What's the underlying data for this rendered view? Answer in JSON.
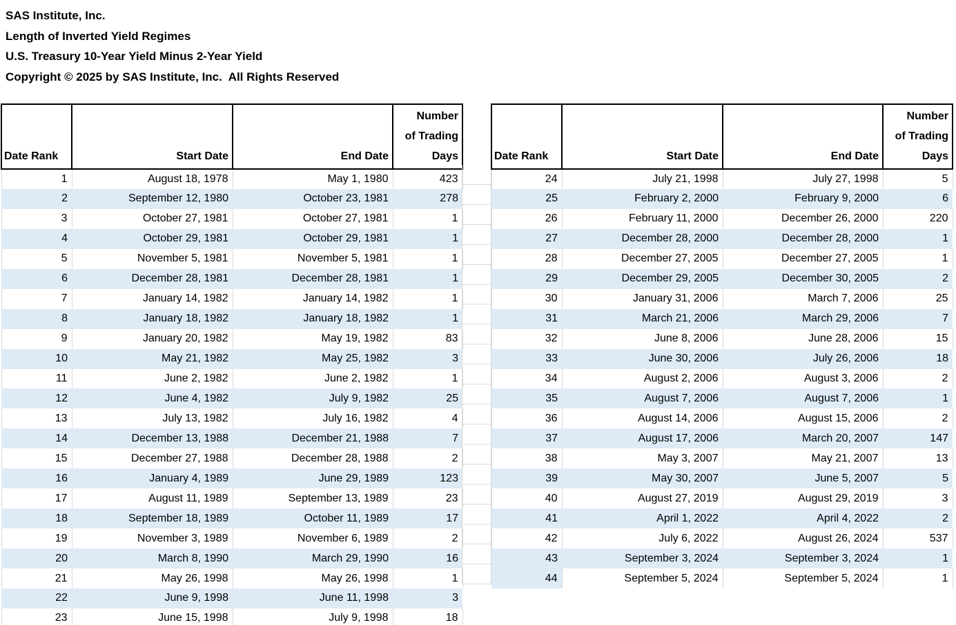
{
  "title": {
    "lines": [
      "SAS Institute, Inc.",
      "Length of Inverted Yield Regimes",
      "U.S. Treasury 10-Year Yield Minus 2-Year Yield",
      "Copyright © 2025 by SAS Institute, Inc.  All Rights Reserved"
    ]
  },
  "table_header": {
    "date_rank": "Date Rank",
    "start_date": "Start Date",
    "end_date": "End Date",
    "days_lines": [
      "Number",
      "of Trading",
      "Days"
    ]
  },
  "colors": {
    "stripe_blue": "#DEEBF7",
    "gridline_gray": "#D8D8D8",
    "header_border": "#000000",
    "text": "#000000"
  },
  "left_table": {
    "rows": [
      {
        "rank": 1,
        "start": "August 18, 1978",
        "end": "May 1, 1980",
        "days": 423
      },
      {
        "rank": 2,
        "start": "September 12, 1980",
        "end": "October 23, 1981",
        "days": 278
      },
      {
        "rank": 3,
        "start": "October 27, 1981",
        "end": "October 27, 1981",
        "days": 1
      },
      {
        "rank": 4,
        "start": "October 29, 1981",
        "end": "October 29, 1981",
        "days": 1
      },
      {
        "rank": 5,
        "start": "November 5, 1981",
        "end": "November 5, 1981",
        "days": 1
      },
      {
        "rank": 6,
        "start": "December 28, 1981",
        "end": "December 28, 1981",
        "days": 1
      },
      {
        "rank": 7,
        "start": "January 14, 1982",
        "end": "January 14, 1982",
        "days": 1
      },
      {
        "rank": 8,
        "start": "January 18, 1982",
        "end": "January 18, 1982",
        "days": 1
      },
      {
        "rank": 9,
        "start": "January 20, 1982",
        "end": "May 19, 1982",
        "days": 83
      },
      {
        "rank": 10,
        "start": "May 21, 1982",
        "end": "May 25, 1982",
        "days": 3
      },
      {
        "rank": 11,
        "start": "June 2, 1982",
        "end": "June 2, 1982",
        "days": 1
      },
      {
        "rank": 12,
        "start": "June 4, 1982",
        "end": "July 9, 1982",
        "days": 25
      },
      {
        "rank": 13,
        "start": "July 13, 1982",
        "end": "July 16, 1982",
        "days": 4
      },
      {
        "rank": 14,
        "start": "December 13, 1988",
        "end": "December 21, 1988",
        "days": 7
      },
      {
        "rank": 15,
        "start": "December 27, 1988",
        "end": "December 28, 1988",
        "days": 2
      },
      {
        "rank": 16,
        "start": "January 4, 1989",
        "end": "June 29, 1989",
        "days": 123
      },
      {
        "rank": 17,
        "start": "August 11, 1989",
        "end": "September 13, 1989",
        "days": 23
      },
      {
        "rank": 18,
        "start": "September 18, 1989",
        "end": "October 11, 1989",
        "days": 17
      },
      {
        "rank": 19,
        "start": "November 3, 1989",
        "end": "November 6, 1989",
        "days": 2
      },
      {
        "rank": 20,
        "start": "March 8, 1990",
        "end": "March 29, 1990",
        "days": 16
      },
      {
        "rank": 21,
        "start": "May 26, 1998",
        "end": "May 26, 1998",
        "days": 1
      },
      {
        "rank": 22,
        "start": "June 9, 1998",
        "end": "June 11, 1998",
        "days": 3
      },
      {
        "rank": 23,
        "start": "June 15, 1998",
        "end": "July 9, 1998",
        "days": 18
      }
    ]
  },
  "right_table": {
    "last_row_rank_striped": true,
    "rows": [
      {
        "rank": 24,
        "start": "July 21, 1998",
        "end": "July 27, 1998",
        "days": 5
      },
      {
        "rank": 25,
        "start": "February 2, 2000",
        "end": "February 9, 2000",
        "days": 6
      },
      {
        "rank": 26,
        "start": "February 11, 2000",
        "end": "December 26, 2000",
        "days": 220
      },
      {
        "rank": 27,
        "start": "December 28, 2000",
        "end": "December 28, 2000",
        "days": 1
      },
      {
        "rank": 28,
        "start": "December 27, 2005",
        "end": "December 27, 2005",
        "days": 1
      },
      {
        "rank": 29,
        "start": "December 29, 2005",
        "end": "December 30, 2005",
        "days": 2
      },
      {
        "rank": 30,
        "start": "January 31, 2006",
        "end": "March 7, 2006",
        "days": 25
      },
      {
        "rank": 31,
        "start": "March 21, 2006",
        "end": "March 29, 2006",
        "days": 7
      },
      {
        "rank": 32,
        "start": "June 8, 2006",
        "end": "June 28, 2006",
        "days": 15
      },
      {
        "rank": 33,
        "start": "June 30, 2006",
        "end": "July 26, 2006",
        "days": 18
      },
      {
        "rank": 34,
        "start": "August 2, 2006",
        "end": "August 3, 2006",
        "days": 2
      },
      {
        "rank": 35,
        "start": "August 7, 2006",
        "end": "August 7, 2006",
        "days": 1
      },
      {
        "rank": 36,
        "start": "August 14, 2006",
        "end": "August 15, 2006",
        "days": 2
      },
      {
        "rank": 37,
        "start": "August 17, 2006",
        "end": "March 20, 2007",
        "days": 147
      },
      {
        "rank": 38,
        "start": "May 3, 2007",
        "end": "May 21, 2007",
        "days": 13
      },
      {
        "rank": 39,
        "start": "May 30, 2007",
        "end": "June 5, 2007",
        "days": 5
      },
      {
        "rank": 40,
        "start": "August 27, 2019",
        "end": "August 29, 2019",
        "days": 3
      },
      {
        "rank": 41,
        "start": "April 1, 2022",
        "end": "April 4, 2022",
        "days": 2
      },
      {
        "rank": 42,
        "start": "July 6, 2022",
        "end": "August 26, 2024",
        "days": 537
      },
      {
        "rank": 43,
        "start": "September 3, 2024",
        "end": "September 3, 2024",
        "days": 1
      },
      {
        "rank": 44,
        "start": "September 5, 2024",
        "end": "September 5, 2024",
        "days": 1
      }
    ]
  }
}
